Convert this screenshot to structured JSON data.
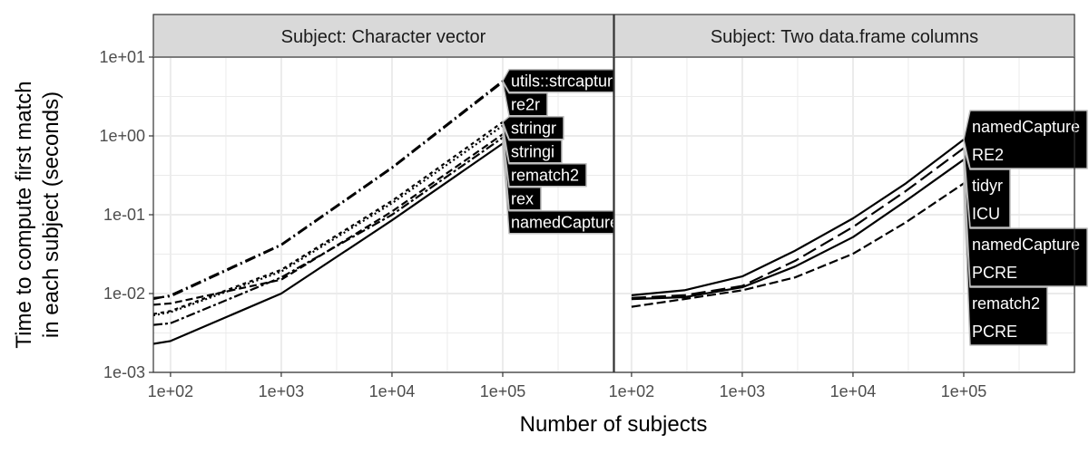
{
  "chart_data": {
    "type": "line",
    "xlabel": "Number of subjects",
    "ylabel": [
      "Time to compute first match",
      "in each subject (seconds)"
    ],
    "x_scale": "log10",
    "y_scale": "log10",
    "xlim": [
      70,
      1000000
    ],
    "ylim": [
      0.001,
      10
    ],
    "x_ticks": [
      {
        "value": 100,
        "label": "1e+02"
      },
      {
        "value": 1000,
        "label": "1e+03"
      },
      {
        "value": 10000,
        "label": "1e+04"
      },
      {
        "value": 100000,
        "label": "1e+05"
      }
    ],
    "y_ticks": [
      {
        "value": 0.001,
        "label": "1e-03"
      },
      {
        "value": 0.01,
        "label": "1e-02"
      },
      {
        "value": 0.1,
        "label": "1e-01"
      },
      {
        "value": 1,
        "label": "1e+00"
      },
      {
        "value": 10,
        "label": "1e+01"
      }
    ],
    "grid": true,
    "legend": "direct labels at series end",
    "colors": {
      "line": "#000000",
      "label_bg": "#000000",
      "label_border": "#bdbdbd",
      "label_text": "#ffffff",
      "strip_bg": "#d9d9d9",
      "grid": "#ebebeb",
      "panel_border": "#333333"
    },
    "panels": [
      {
        "strip": "Subject: Character vector",
        "series": [
          {
            "name": "utils::strcapture",
            "dash": "12,4,2,4",
            "x": [
              70,
              100,
              1000,
              10000,
              100000
            ],
            "y": [
              0.0085,
              0.0095,
              0.042,
              0.4,
              5.0
            ]
          },
          {
            "name": "re2r",
            "dash": "12,4,2,4",
            "x": [
              70,
              100,
              1000,
              10000,
              100000
            ],
            "y": [
              0.0088,
              0.0092,
              0.041,
              0.39,
              4.8
            ]
          },
          {
            "name": "stringr",
            "dash": "4,4",
            "x": [
              70,
              100,
              1000,
              10000,
              100000
            ],
            "y": [
              0.0055,
              0.006,
              0.02,
              0.15,
              1.5
            ]
          },
          {
            "name": "stringi",
            "dash": "2,3",
            "x": [
              70,
              100,
              1000,
              10000,
              100000
            ],
            "y": [
              0.0053,
              0.0058,
              0.019,
              0.14,
              1.35
            ]
          },
          {
            "name": "rematch2",
            "dash": "8,4",
            "x": [
              70,
              100,
              1000,
              10000,
              100000
            ],
            "y": [
              0.0072,
              0.0075,
              0.015,
              0.11,
              1.05
            ]
          },
          {
            "name": "rex",
            "dash": "10,3,3,3",
            "x": [
              70,
              100,
              1000,
              10000,
              100000
            ],
            "y": [
              0.004,
              0.0042,
              0.016,
              0.1,
              0.95
            ]
          },
          {
            "name": "namedCapture",
            "dash": "",
            "x": [
              70,
              100,
              1000,
              10000,
              100000
            ],
            "y": [
              0.0023,
              0.0025,
              0.01,
              0.085,
              0.8
            ]
          }
        ],
        "labels": [
          {
            "series": "utils::strcapture",
            "lines": [
              "utils::strcapture"
            ]
          },
          {
            "series": "re2r",
            "lines": [
              "re2r"
            ]
          },
          {
            "series": "stringr",
            "lines": [
              "stringr"
            ]
          },
          {
            "series": "stringi",
            "lines": [
              "stringi"
            ]
          },
          {
            "series": "rematch2",
            "lines": [
              "rematch2"
            ]
          },
          {
            "series": "rex",
            "lines": [
              "rex"
            ]
          },
          {
            "series": "namedCapture",
            "lines": [
              "namedCapture"
            ]
          }
        ]
      },
      {
        "strip": "Subject: Two data.frame columns",
        "series": [
          {
            "name": "namedCapture RE2",
            "dash": "",
            "x": [
              100,
              300,
              1000,
              3000,
              10000,
              30000,
              100000
            ],
            "y": [
              0.0095,
              0.011,
              0.0165,
              0.035,
              0.09,
              0.25,
              0.9
            ]
          },
          {
            "name": "tidyr ICU",
            "dash": "16,6",
            "x": [
              100,
              300,
              1000,
              3000,
              10000,
              30000,
              100000
            ],
            "y": [
              0.0088,
              0.0095,
              0.0125,
              0.026,
              0.07,
              0.2,
              0.7
            ]
          },
          {
            "name": "namedCapture PCRE",
            "dash": "",
            "x": [
              100,
              300,
              1000,
              3000,
              10000,
              30000,
              100000
            ],
            "y": [
              0.0085,
              0.009,
              0.012,
              0.022,
              0.052,
              0.15,
              0.5
            ]
          },
          {
            "name": "rematch2 PCRE",
            "dash": "10,4",
            "x": [
              100,
              300,
              1000,
              3000,
              10000,
              30000,
              100000
            ],
            "y": [
              0.0068,
              0.0085,
              0.011,
              0.016,
              0.032,
              0.08,
              0.25
            ]
          }
        ],
        "labels": [
          {
            "series": "namedCapture RE2",
            "lines": [
              "namedCapture",
              "RE2"
            ]
          },
          {
            "series": "tidyr ICU",
            "lines": [
              "tidyr",
              "ICU"
            ]
          },
          {
            "series": "namedCapture PCRE",
            "lines": [
              "namedCapture",
              "PCRE"
            ]
          },
          {
            "series": "rematch2 PCRE",
            "lines": [
              "rematch2",
              "PCRE"
            ]
          }
        ]
      }
    ]
  }
}
